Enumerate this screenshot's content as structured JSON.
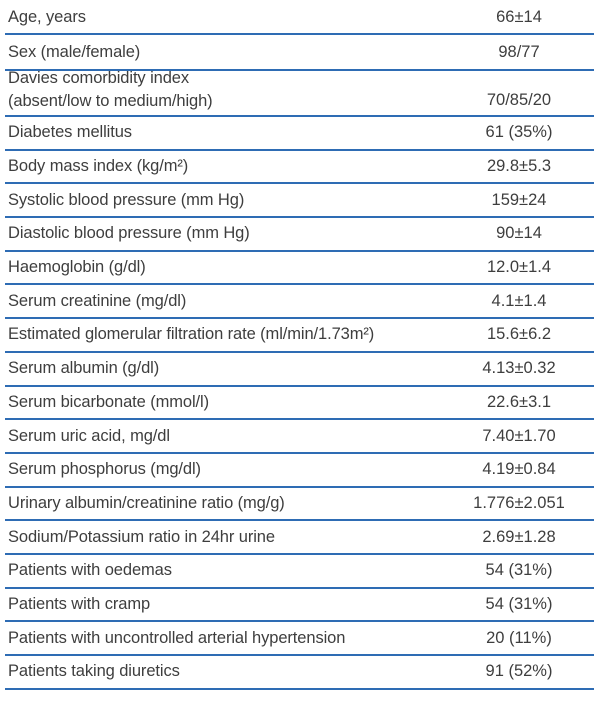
{
  "colors": {
    "rule_blue": "#2e6cb4",
    "text": "#3e3e3e",
    "background": "#ffffff"
  },
  "table": {
    "description": "patient-baseline-characteristics-table",
    "rows": [
      {
        "label": "Age, years",
        "value": "66±14"
      },
      {
        "label": "Sex (male/female)",
        "value": "98/77"
      },
      {
        "label": "Davies comorbidity index",
        "label2": "(absent/low to medium/high)",
        "value": "70/85/20"
      },
      {
        "label": "Diabetes mellitus",
        "value": "61 (35%)"
      },
      {
        "label": "Body mass index (kg/m²)",
        "value": "29.8±5.3"
      },
      {
        "label": "Systolic blood pressure (mm Hg)",
        "value": "159±24"
      },
      {
        "label": "Diastolic blood pressure (mm Hg)",
        "value": "90±14"
      },
      {
        "label": "Haemoglobin (g/dl)",
        "value": "12.0±1.4"
      },
      {
        "label": "Serum creatinine (mg/dl)",
        "value": "4.1±1.4"
      },
      {
        "label": "Estimated glomerular filtration rate (ml/min/1.73m²)",
        "value": "15.6±6.2"
      },
      {
        "label": "Serum albumin (g/dl)",
        "value": "4.13±0.32"
      },
      {
        "label": "Serum bicarbonate (mmol/l)",
        "value": "22.6±3.1"
      },
      {
        "label": "Serum uric acid, mg/dl",
        "value": "7.40±1.70"
      },
      {
        "label": "Serum phosphorus (mg/dl)",
        "value": "4.19±0.84"
      },
      {
        "label": "Urinary albumin/creatinine ratio (mg/g)",
        "value": "1.776±2.051"
      },
      {
        "label": "Sodium/Potassium ratio in 24hr urine",
        "value": "2.69±1.28"
      },
      {
        "label": "Patients with oedemas",
        "value": "54 (31%)"
      },
      {
        "label": "Patients with cramp",
        "value": "54 (31%)"
      },
      {
        "label": "Patients with uncontrolled arterial hypertension",
        "value": "20 (11%)"
      },
      {
        "label": "Patients taking diuretics",
        "value": "91 (52%)"
      }
    ]
  }
}
